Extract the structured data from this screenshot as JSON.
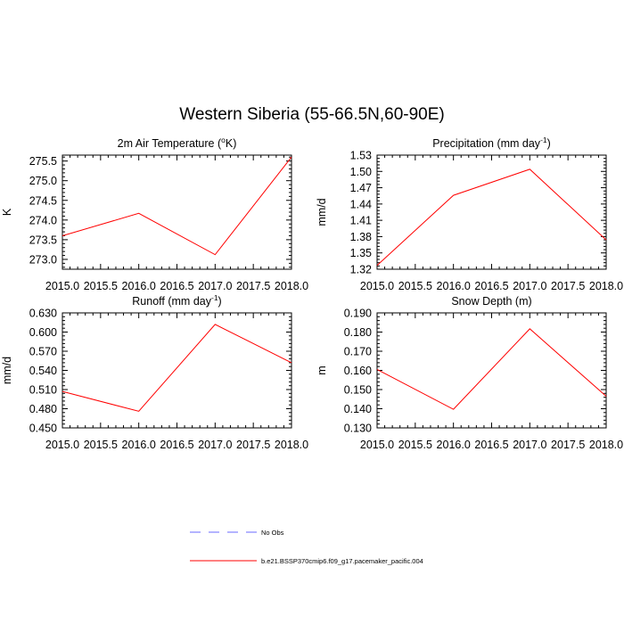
{
  "title": "Western Siberia (55-66.5N,60-90E)",
  "legend": {
    "entries": [
      {
        "label": "No Obs",
        "color": "#6a6aff",
        "dash": "dashed"
      },
      {
        "label": "b.e21.BSSP370cmip6.f09_g17.pacemaker_pacific.004",
        "color": "#ff0000",
        "dash": "solid"
      }
    ]
  },
  "chart_data": [
    {
      "type": "line",
      "title_main": "2m Air Temperature (",
      "title_sup": "o",
      "title_end": "K)",
      "ylabel": "K",
      "xlabel": "",
      "x": [
        2015.0,
        2016.0,
        2017.0,
        2018.0
      ],
      "xlim": [
        2015.0,
        2018.0
      ],
      "xticks": [
        "2015.0",
        "2015.5",
        "2016.0",
        "2016.5",
        "2017.0",
        "2017.5",
        "2018.0"
      ],
      "ylim": [
        272.75,
        275.65
      ],
      "yticks": [
        "273.0",
        "273.5",
        "274.0",
        "274.5",
        "275.0",
        "275.5"
      ],
      "series": [
        {
          "name": "b.e21.BSSP370cmip6.f09_g17.pacemaker_pacific.004",
          "color": "#ff0000",
          "values": [
            273.6,
            274.17,
            273.12,
            275.6
          ]
        }
      ]
    },
    {
      "type": "line",
      "title_main": "Precipitation (mm day",
      "title_sup": "-1",
      "title_end": ")",
      "ylabel": "mm/d",
      "xlabel": "",
      "x": [
        2015.0,
        2016.0,
        2017.0,
        2018.0
      ],
      "xlim": [
        2015.0,
        2018.0
      ],
      "xticks": [
        "2015.0",
        "2015.5",
        "2016.0",
        "2016.5",
        "2017.0",
        "2017.5",
        "2018.0"
      ],
      "ylim": [
        1.32,
        1.53
      ],
      "yticks": [
        "1.32",
        "1.35",
        "1.38",
        "1.41",
        "1.44",
        "1.47",
        "1.50",
        "1.53"
      ],
      "series": [
        {
          "name": "b.e21.BSSP370cmip6.f09_g17.pacemaker_pacific.004",
          "color": "#ff0000",
          "values": [
            1.327,
            1.456,
            1.504,
            1.374
          ]
        }
      ]
    },
    {
      "type": "line",
      "title_main": "Runoff (mm day",
      "title_sup": "-1",
      "title_end": ")",
      "ylabel": "mm/d",
      "xlabel": "",
      "x": [
        2015.0,
        2016.0,
        2017.0,
        2018.0
      ],
      "xlim": [
        2015.0,
        2018.0
      ],
      "xticks": [
        "2015.0",
        "2015.5",
        "2016.0",
        "2016.5",
        "2017.0",
        "2017.5",
        "2018.0"
      ],
      "ylim": [
        0.45,
        0.63
      ],
      "yticks": [
        "0.450",
        "0.480",
        "0.510",
        "0.540",
        "0.570",
        "0.600",
        "0.630"
      ],
      "series": [
        {
          "name": "b.e21.BSSP370cmip6.f09_g17.pacemaker_pacific.004",
          "color": "#ff0000",
          "values": [
            0.507,
            0.476,
            0.612,
            0.552
          ]
        }
      ]
    },
    {
      "type": "line",
      "title_main": "Snow Depth (m)",
      "title_sup": "",
      "title_end": "",
      "ylabel": "m",
      "xlabel": "",
      "x": [
        2015.0,
        2016.0,
        2017.0,
        2018.0
      ],
      "xlim": [
        2015.0,
        2018.0
      ],
      "xticks": [
        "2015.0",
        "2015.5",
        "2016.0",
        "2016.5",
        "2017.0",
        "2017.5",
        "2018.0"
      ],
      "ylim": [
        0.13,
        0.19
      ],
      "yticks": [
        "0.130",
        "0.140",
        "0.150",
        "0.160",
        "0.170",
        "0.180",
        "0.190"
      ],
      "series": [
        {
          "name": "b.e21.BSSP370cmip6.f09_g17.pacemaker_pacific.004",
          "color": "#ff0000",
          "values": [
            0.1605,
            0.1397,
            0.1817,
            0.1465
          ]
        }
      ]
    }
  ]
}
